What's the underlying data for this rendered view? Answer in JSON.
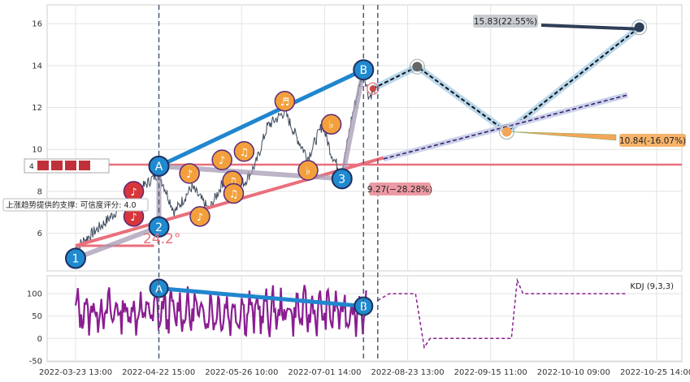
{
  "chart_data": {
    "type": "line",
    "x_ticks": [
      "2022-03-23 13:00",
      "2022-04-22 15:00",
      "2022-05-26 10:00",
      "2022-07-01 14:00",
      "2022-08-23 13:00",
      "2022-09-15 11:00",
      "2022-10-10 09:00",
      "2022-10-25 14:00"
    ],
    "price_panel": {
      "ylim": [
        4.2,
        16.9
      ],
      "y_ticks": [
        6,
        8,
        10,
        12,
        14,
        16
      ],
      "support_level": 9.27,
      "trend_angle_label": "24.2°",
      "support_text": "上涨趋势提供的支撑: 可信度评分: 4.0",
      "pivots": [
        {
          "label": "1",
          "x": 0.0,
          "y": 4.8
        },
        {
          "label": "2",
          "x": 0.1434,
          "y": 6.3
        },
        {
          "label": "A",
          "x": 0.1434,
          "y": 9.2
        },
        {
          "label": "3",
          "x": 0.4584,
          "y": 8.6
        },
        {
          "label": "B",
          "x": 0.4955,
          "y": 13.8
        }
      ],
      "projection_path": [
        {
          "x": 0.5116,
          "y": 12.9
        },
        {
          "x": 0.5879,
          "y": 13.95
        },
        {
          "x": 0.7419,
          "y": 10.84
        },
        {
          "x": 0.9702,
          "y": 15.83
        }
      ],
      "annotations": [
        {
          "text": "15.83(22.55%)",
          "value": 15.83,
          "change": "22.55%"
        },
        {
          "text": "10.84(-16.07%)",
          "value": 10.84,
          "change": "-16.07%"
        },
        {
          "text": "9.27(−28.28%)",
          "value": 9.27,
          "change": "-28.28%"
        }
      ],
      "legend_stub": "4"
    },
    "kdj_panel": {
      "title": "KDJ (9,3,3)",
      "ylim": [
        -52,
        140
      ],
      "y_ticks": [
        -50,
        0,
        50,
        100
      ],
      "wave": [
        {
          "label": "A",
          "x": 0.1434,
          "y": 112
        },
        {
          "label": "B",
          "x": 0.4955,
          "y": 72
        }
      ]
    }
  }
}
